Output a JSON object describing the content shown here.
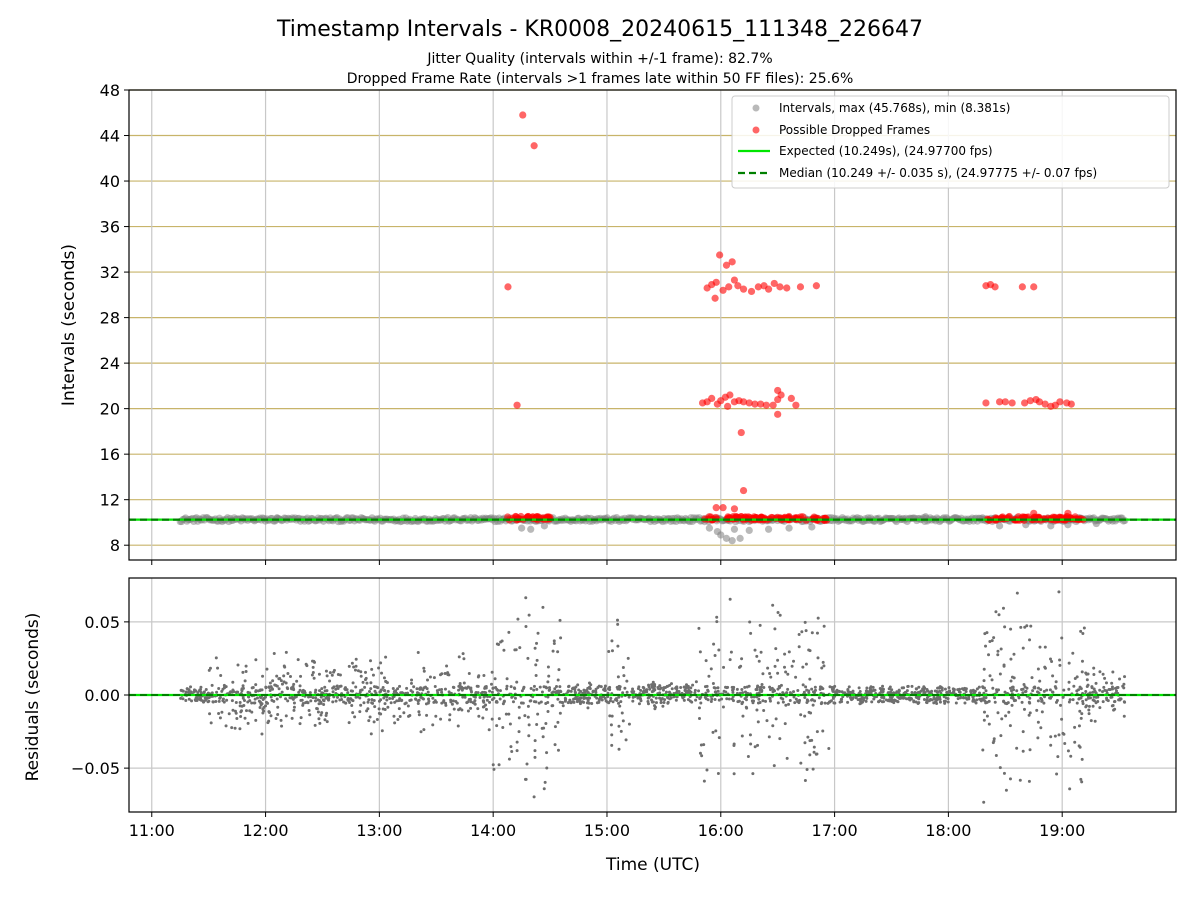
{
  "figure": {
    "title": "Timestamp Intervals - KR0008_20240615_111348_226647",
    "subtitle_1": "Jitter Quality (intervals within +/-1 frame): 82.7%",
    "subtitle_2": "Dropped Frame Rate (intervals >1 frames late within 50 FF files): 25.6%"
  },
  "colors": {
    "intervals": "#808080",
    "dropped": "#ff0000",
    "expected": "#00e600",
    "median": "#008000",
    "hgrid": "#c8b46a",
    "vgrid": "#c8c8c8"
  },
  "chart_data": [
    {
      "type": "scatter",
      "ylabel": "Intervals (seconds)",
      "xlim": [
        10.8,
        20.0
      ],
      "ylim": [
        6.7,
        48
      ],
      "yticks": [
        8,
        12,
        16,
        20,
        24,
        28,
        32,
        36,
        40,
        44,
        48
      ],
      "ytick_labels": [
        "8",
        "12",
        "16",
        "20",
        "24",
        "28",
        "32",
        "36",
        "40",
        "44",
        "48"
      ],
      "xticks": [
        11,
        12,
        13,
        14,
        15,
        16,
        17,
        18,
        19
      ],
      "grid": "horizontal",
      "legend_position": "top-right",
      "legend": [
        "Intervals, max (45.768s), min (8.381s)",
        "Possible Dropped Frames",
        "Expected (10.249s), (24.97700 fps)",
        "Median (10.249 +/- 0.035 s), (24.97775 +/- 0.07 fps)"
      ],
      "expected_interval": 10.249,
      "median_interval": 10.249,
      "interval_base_ranges": [
        [
          11.25,
          19.55
        ]
      ],
      "interval_points": [
        [
          16.0,
          8.9
        ],
        [
          16.05,
          8.6
        ],
        [
          16.1,
          8.4
        ],
        [
          16.17,
          8.6
        ],
        [
          15.97,
          9.2
        ],
        [
          16.12,
          9.4
        ],
        [
          16.25,
          9.3
        ],
        [
          15.9,
          9.5
        ],
        [
          16.42,
          9.4
        ],
        [
          16.6,
          9.5
        ],
        [
          16.8,
          9.6
        ],
        [
          14.25,
          9.5
        ],
        [
          14.33,
          9.4
        ],
        [
          14.45,
          9.7
        ],
        [
          18.45,
          9.7
        ],
        [
          18.68,
          9.8
        ],
        [
          18.9,
          9.7
        ],
        [
          19.05,
          9.8
        ],
        [
          19.3,
          9.9
        ],
        [
          17.8,
          10.5
        ],
        [
          12.1,
          10.4
        ],
        [
          18.3,
          10.4
        ]
      ],
      "dropped_points": [
        [
          14.26,
          45.8
        ],
        [
          14.36,
          43.1
        ],
        [
          14.13,
          30.7
        ],
        [
          14.21,
          20.3
        ],
        [
          15.99,
          33.5
        ],
        [
          16.02,
          30.4
        ],
        [
          15.88,
          30.6
        ],
        [
          15.92,
          30.9
        ],
        [
          15.96,
          31.1
        ],
        [
          16.05,
          32.6
        ],
        [
          16.1,
          32.9
        ],
        [
          16.12,
          31.3
        ],
        [
          16.15,
          30.8
        ],
        [
          16.2,
          30.5
        ],
        [
          16.27,
          30.3
        ],
        [
          16.33,
          30.7
        ],
        [
          16.38,
          30.8
        ],
        [
          16.42,
          30.5
        ],
        [
          16.47,
          31.0
        ],
        [
          16.52,
          30.7
        ],
        [
          16.58,
          30.6
        ],
        [
          16.7,
          30.7
        ],
        [
          16.84,
          30.8
        ],
        [
          15.95,
          29.7
        ],
        [
          16.07,
          30.7
        ],
        [
          15.84,
          20.5
        ],
        [
          15.88,
          20.6
        ],
        [
          15.92,
          20.9
        ],
        [
          15.97,
          20.4
        ],
        [
          16.0,
          20.7
        ],
        [
          16.04,
          21.0
        ],
        [
          16.08,
          21.2
        ],
        [
          16.12,
          20.6
        ],
        [
          16.16,
          20.7
        ],
        [
          16.2,
          20.6
        ],
        [
          16.25,
          20.5
        ],
        [
          16.3,
          20.4
        ],
        [
          16.35,
          20.4
        ],
        [
          16.4,
          20.3
        ],
        [
          16.46,
          20.3
        ],
        [
          16.5,
          21.6
        ],
        [
          16.5,
          20.8
        ],
        [
          16.53,
          21.2
        ],
        [
          16.5,
          19.5
        ],
        [
          16.62,
          20.9
        ],
        [
          16.66,
          20.3
        ],
        [
          16.18,
          17.9
        ],
        [
          16.06,
          20.2
        ],
        [
          18.33,
          30.8
        ],
        [
          18.37,
          30.9
        ],
        [
          18.41,
          30.7
        ],
        [
          18.65,
          30.7
        ],
        [
          18.75,
          30.7
        ],
        [
          18.33,
          20.5
        ],
        [
          18.45,
          20.6
        ],
        [
          18.5,
          20.6
        ],
        [
          18.56,
          20.5
        ],
        [
          18.67,
          20.5
        ],
        [
          18.72,
          20.7
        ],
        [
          18.77,
          20.8
        ],
        [
          18.8,
          20.6
        ],
        [
          18.85,
          20.4
        ],
        [
          18.9,
          20.2
        ],
        [
          18.94,
          20.3
        ],
        [
          18.98,
          20.6
        ],
        [
          19.04,
          20.5
        ],
        [
          19.08,
          20.4
        ],
        [
          16.2,
          12.8
        ],
        [
          15.96,
          11.3
        ],
        [
          16.02,
          11.3
        ],
        [
          16.12,
          11.2
        ],
        [
          18.75,
          10.8
        ],
        [
          19.05,
          10.8
        ]
      ],
      "dropped_band_ranges": [
        [
          14.1,
          14.5
        ],
        [
          15.85,
          16.95
        ],
        [
          18.3,
          19.2
        ]
      ],
      "dropped_band_value": 10.35
    },
    {
      "type": "scatter",
      "xlabel": "Time (UTC)",
      "ylabel": "Residuals (seconds)",
      "xlim": [
        10.8,
        20.0
      ],
      "ylim": [
        -0.08,
        0.08
      ],
      "yticks": [
        -0.05,
        0.0,
        0.05
      ],
      "ytick_labels": [
        "−0.05",
        "0.00",
        "0.05"
      ],
      "xticks": [
        11,
        12,
        13,
        14,
        15,
        16,
        17,
        18,
        19
      ],
      "xtick_labels": [
        "11:00",
        "12:00",
        "13:00",
        "14:00",
        "15:00",
        "16:00",
        "17:00",
        "18:00",
        "19:00"
      ],
      "grid": "both",
      "zero_line": 0.0,
      "residual_segments": [
        {
          "x": [
            11.25,
            11.5
          ],
          "spread": 0.006
        },
        {
          "x": [
            11.5,
            14.0
          ],
          "spread": 0.03
        },
        {
          "x": [
            14.0,
            14.6
          ],
          "spread": 0.075
        },
        {
          "x": [
            14.6,
            15.0
          ],
          "spread": 0.01
        },
        {
          "x": [
            15.0,
            15.2
          ],
          "spread": 0.06
        },
        {
          "x": [
            15.2,
            15.8
          ],
          "spread": 0.01
        },
        {
          "x": [
            15.8,
            16.95
          ],
          "spread": 0.075
        },
        {
          "x": [
            16.95,
            18.3
          ],
          "spread": 0.006
        },
        {
          "x": [
            18.3,
            19.2
          ],
          "spread": 0.075
        },
        {
          "x": [
            19.2,
            19.55
          ],
          "spread": 0.02
        }
      ]
    }
  ]
}
